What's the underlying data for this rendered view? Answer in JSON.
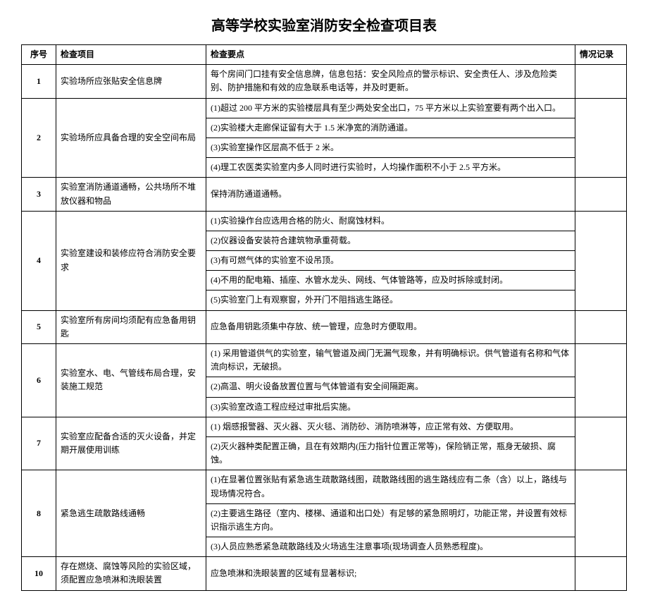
{
  "title": "高等学校实验室消防安全检查项目表",
  "headers": {
    "seq": "序号",
    "item": "检查项目",
    "points": "检查要点",
    "record": "情况记录"
  },
  "rows": [
    {
      "seq": "1",
      "item": "实验场所应张贴安全信息牌",
      "points": [
        "每个房间门口挂有安全信息牌，信息包括：安全风险点的警示标识、安全责任人、涉及危险类别、防护措施和有效的应急联系电话等，并及时更新。"
      ]
    },
    {
      "seq": "2",
      "item": "实验场所应具备合理的安全空间布局",
      "points": [
        "(1)超过 200 平方米的实验楼层具有至少两处安全出口，75 平方米以上实验室要有两个出入口。",
        "(2)实验楼大走廊保证留有大于 1.5 米净宽的消防通道。",
        "(3)实验室操作区层高不低于 2 米。",
        "(4)理工农医类实验室内多人同时进行实验时，人均操作面积不小于 2.5 平方米。"
      ]
    },
    {
      "seq": "3",
      "item": "实验室消防通道通畅，公共场所不堆放仪器和物品",
      "points": [
        "保持消防通道通畅。"
      ]
    },
    {
      "seq": "4",
      "item": "实验室建设和装修应符合消防安全要求",
      "points": [
        "(1)实验操作台应选用合格的防火、耐腐蚀材料。",
        "(2)仪器设备安装符合建筑物承重荷载。",
        "(3)有可燃气体的实验室不设吊顶。",
        "(4)不用的配电箱、插座、水管水龙头、网线、气体管路等，应及时拆除或封闭。",
        "(5)实验室门上有观察窗，外开门不阻挡逃生路径。"
      ]
    },
    {
      "seq": "5",
      "item": "实验室所有房间均须配有应急备用钥匙",
      "points": [
        "应急备用钥匙须集中存放、统一管理，应急时方便取用。"
      ]
    },
    {
      "seq": "6",
      "item": "实验室水、电、气管线布局合理，安装施工规范",
      "points": [
        "(1) 采用管道供气的实验室，输气管道及阀门无漏气现象，并有明确标识。供气管道有名称和气体流向标识，无破损。",
        "(2)高温、明火设备放置位置与气体管道有安全间隔距离。",
        "(3)实验室改造工程应经过审批后实施。"
      ]
    },
    {
      "seq": "7",
      "item": "实验室应配备合适的灭火设备，并定期开展使用训练",
      "points": [
        "(1) 烟感报警器、灭火器、灭火毯、消防砂、消防喷淋等，应正常有效、方便取用。",
        "(2)灭火器种类配置正确，且在有效期内(压力指针位置正常等)，保险销正常，瓶身无破损、腐蚀。"
      ]
    },
    {
      "seq": "8",
      "item": "紧急逃生疏散路线通畅",
      "points": [
        "(1)在显著位置张贴有紧急逃生疏散路线图，疏散路线图的逃生路线应有二条（含）以上，路线与现场情况符合。",
        "(2)主要逃生路径（室内、楼梯、通道和出口处）有足够的紧急照明灯，功能正常，并设置有效标识指示逃生方向。",
        "(3)人员应熟悉紧急疏散路线及火场逃生注意事项(现场调查人员熟悉程度)。"
      ]
    },
    {
      "seq": "10",
      "item": "存在燃烧、腐蚀等风险的实验区域，须配置应急喷淋和洗眼装置",
      "points": [
        "应急喷淋和洗眼装置的区域有显著标识;"
      ]
    }
  ]
}
